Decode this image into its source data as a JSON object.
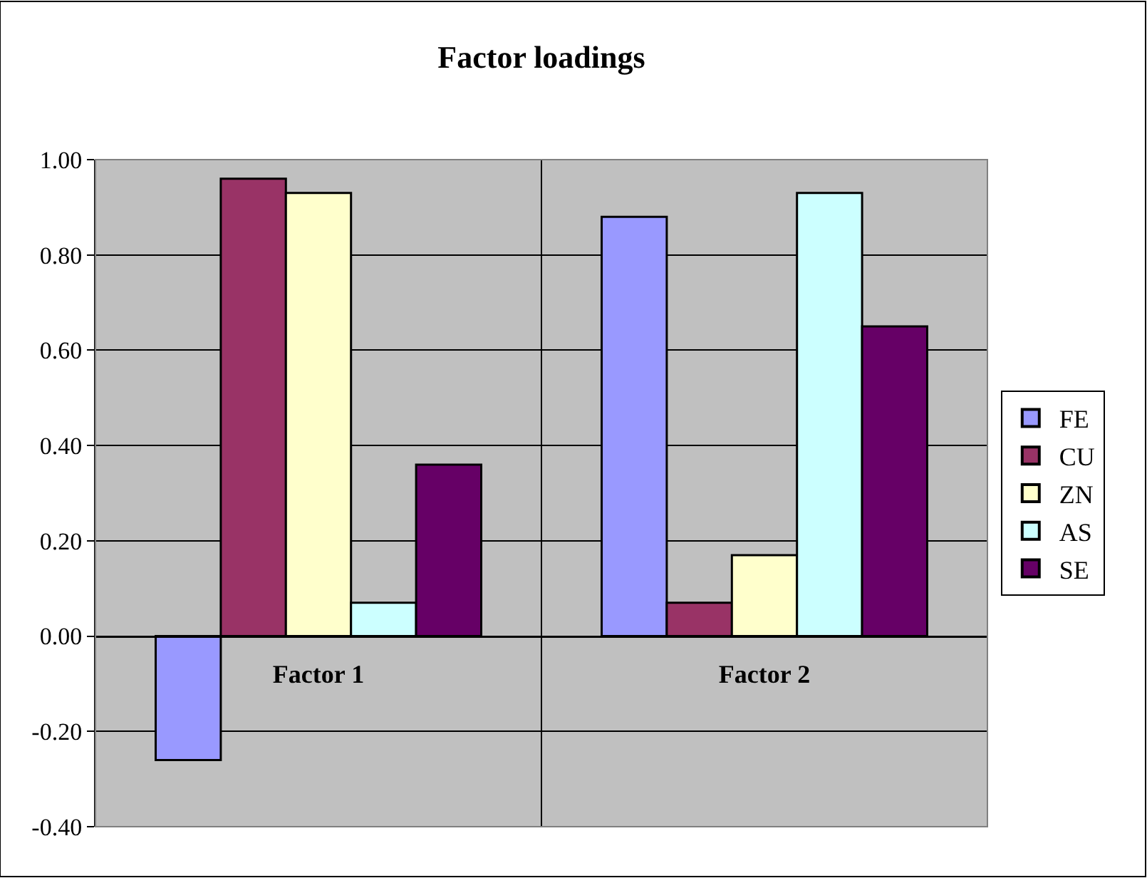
{
  "chart_data": {
    "type": "bar",
    "title": "Factor loadings",
    "categories": [
      "Factor 1",
      "Factor 2"
    ],
    "series": [
      {
        "name": "FE",
        "color": "#9999ff",
        "values": [
          -0.26,
          0.88
        ]
      },
      {
        "name": "CU",
        "color": "#993366",
        "values": [
          0.96,
          0.07
        ]
      },
      {
        "name": "ZN",
        "color": "#ffffcc",
        "values": [
          0.93,
          0.17
        ]
      },
      {
        "name": "AS",
        "color": "#ccffff",
        "values": [
          0.07,
          0.93
        ]
      },
      {
        "name": "SE",
        "color": "#660066",
        "values": [
          0.36,
          0.65
        ]
      }
    ],
    "ylim": [
      -0.4,
      1.0
    ],
    "yticks": [
      {
        "value": -0.4,
        "label": "-0.40"
      },
      {
        "value": -0.2,
        "label": "-0.20"
      },
      {
        "value": 0,
        "label": "0.00"
      },
      {
        "value": 0.2,
        "label": "0.20"
      },
      {
        "value": 0.4,
        "label": "0.40"
      },
      {
        "value": 0.6,
        "label": "0.60"
      },
      {
        "value": 0.8,
        "label": "0.80"
      },
      {
        "value": 1.0,
        "label": "1.00"
      }
    ],
    "grid": true,
    "legend": "right"
  }
}
